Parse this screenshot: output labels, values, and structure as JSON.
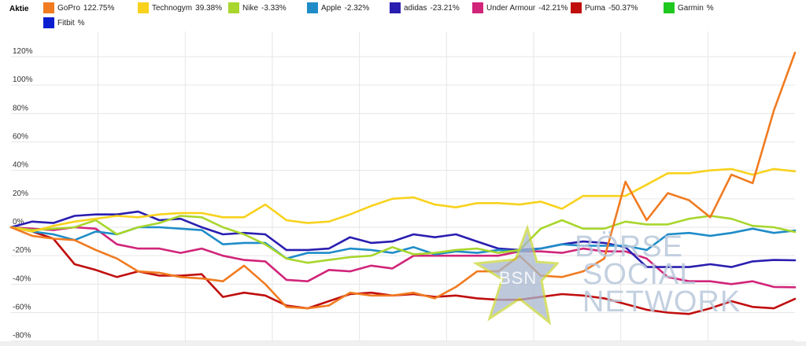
{
  "legend": {
    "title": "Aktie"
  },
  "watermark": {
    "line1": "BÖRSE",
    "line2": "SOCIAL",
    "line3": "NETWORK",
    "logo": "BSN"
  },
  "chart_data": {
    "type": "line",
    "ylim": [
      -80,
      130
    ],
    "yticks": [
      "120%",
      "100%",
      "80%",
      "60%",
      "40%",
      "20%",
      "0%",
      "-20%",
      "-40%",
      "-60%",
      "-80%"
    ],
    "ytick_values": [
      120,
      100,
      80,
      60,
      40,
      20,
      0,
      -20,
      -40,
      -60,
      -80
    ],
    "grid": true,
    "legend_position": "top",
    "series": [
      {
        "name": "GoPro",
        "label": "122.75%",
        "color": "#f07b21",
        "values": [
          0,
          -6,
          -8,
          -9,
          -16,
          -22,
          -31,
          -32,
          -35,
          -36,
          -38,
          -27,
          -40,
          -56,
          -57,
          -55,
          -46,
          -48,
          -48,
          -46,
          -50,
          -42,
          -31,
          -31,
          -20,
          -34,
          -35,
          -31,
          -22,
          32,
          5,
          24,
          19,
          7,
          37,
          31,
          82,
          122.75
        ]
      },
      {
        "name": "Technogym",
        "label": "39.38%",
        "color": "#f8d21d",
        "values": [
          0,
          -3,
          1,
          4,
          6,
          8,
          7,
          9,
          10,
          10,
          7,
          7,
          16,
          5,
          3,
          4,
          9,
          15,
          20,
          21,
          16,
          14,
          17,
          17,
          16,
          18,
          13,
          22,
          22,
          22,
          30,
          38,
          38,
          40,
          41,
          37,
          41,
          39.38
        ]
      },
      {
        "name": "Nike",
        "label": "-3.33%",
        "color": "#a8d62c",
        "values": [
          0,
          -2,
          -1,
          0,
          5,
          -5,
          0,
          3,
          8,
          7,
          0,
          -5,
          -12,
          -22,
          -25,
          -23,
          -21,
          -20,
          -14,
          -19,
          -18,
          -16,
          -15,
          -18,
          -16,
          -1,
          5,
          -1,
          -1,
          4,
          2,
          2,
          6,
          8,
          6,
          1,
          0,
          -3.33
        ]
      },
      {
        "name": "Apple",
        "label": "-2.32%",
        "color": "#1f8cc8",
        "values": [
          0,
          -3,
          -5,
          -9,
          -3,
          -5,
          0,
          0,
          -1,
          -2,
          -12,
          -11,
          -11,
          -22,
          -18,
          -18,
          -15,
          -16,
          -18,
          -14,
          -19,
          -17,
          -18,
          -16,
          -17,
          -15,
          -12,
          -13,
          -13,
          -13,
          -16,
          -5,
          -4,
          -6,
          -4,
          -1,
          -4,
          -2.32
        ]
      },
      {
        "name": "adidas",
        "label": "-23.21%",
        "color": "#2a1eb0",
        "values": [
          0,
          4,
          3,
          8,
          9,
          9,
          11,
          5,
          6,
          0,
          -5,
          -4,
          -5,
          -16,
          -16,
          -15,
          -7,
          -11,
          -10,
          -5,
          -7,
          -5,
          -10,
          -15,
          -16,
          -15,
          -12,
          -10,
          -11,
          -14,
          -28,
          -28,
          -28,
          -26,
          -28,
          -24,
          -23,
          -23.21
        ]
      },
      {
        "name": "Under Armour",
        "label": "-42.21%",
        "color": "#d1257a",
        "values": [
          0,
          -1,
          -2,
          0,
          -1,
          -12,
          -15,
          -15,
          -18,
          -15,
          -20,
          -23,
          -24,
          -37,
          -38,
          -30,
          -31,
          -27,
          -29,
          -20,
          -20,
          -20,
          -20,
          -20,
          -17,
          -17,
          -18,
          -15,
          -17,
          -17,
          -22,
          -35,
          -38,
          -38,
          -40,
          -38,
          -42,
          -42.21
        ]
      },
      {
        "name": "Puma",
        "label": "-50.37%",
        "color": "#c00d0d",
        "values": [
          0,
          -3,
          -8,
          -26,
          -30,
          -35,
          -31,
          -34,
          -34,
          -33,
          -49,
          -46,
          -48,
          -55,
          -57,
          -52,
          -47,
          -46,
          -48,
          -47,
          -49,
          -48,
          -50,
          -51,
          -51,
          -49,
          -47,
          -48,
          -50,
          -54,
          -58,
          -60,
          -61,
          -57,
          -52,
          -56,
          -57,
          -50.37
        ]
      },
      {
        "name": "Garmin",
        "label": "%",
        "color": "#1fc81f",
        "values": []
      },
      {
        "name": "Fitbit",
        "label": "%",
        "color": "#0a1ed0",
        "values": []
      }
    ]
  }
}
